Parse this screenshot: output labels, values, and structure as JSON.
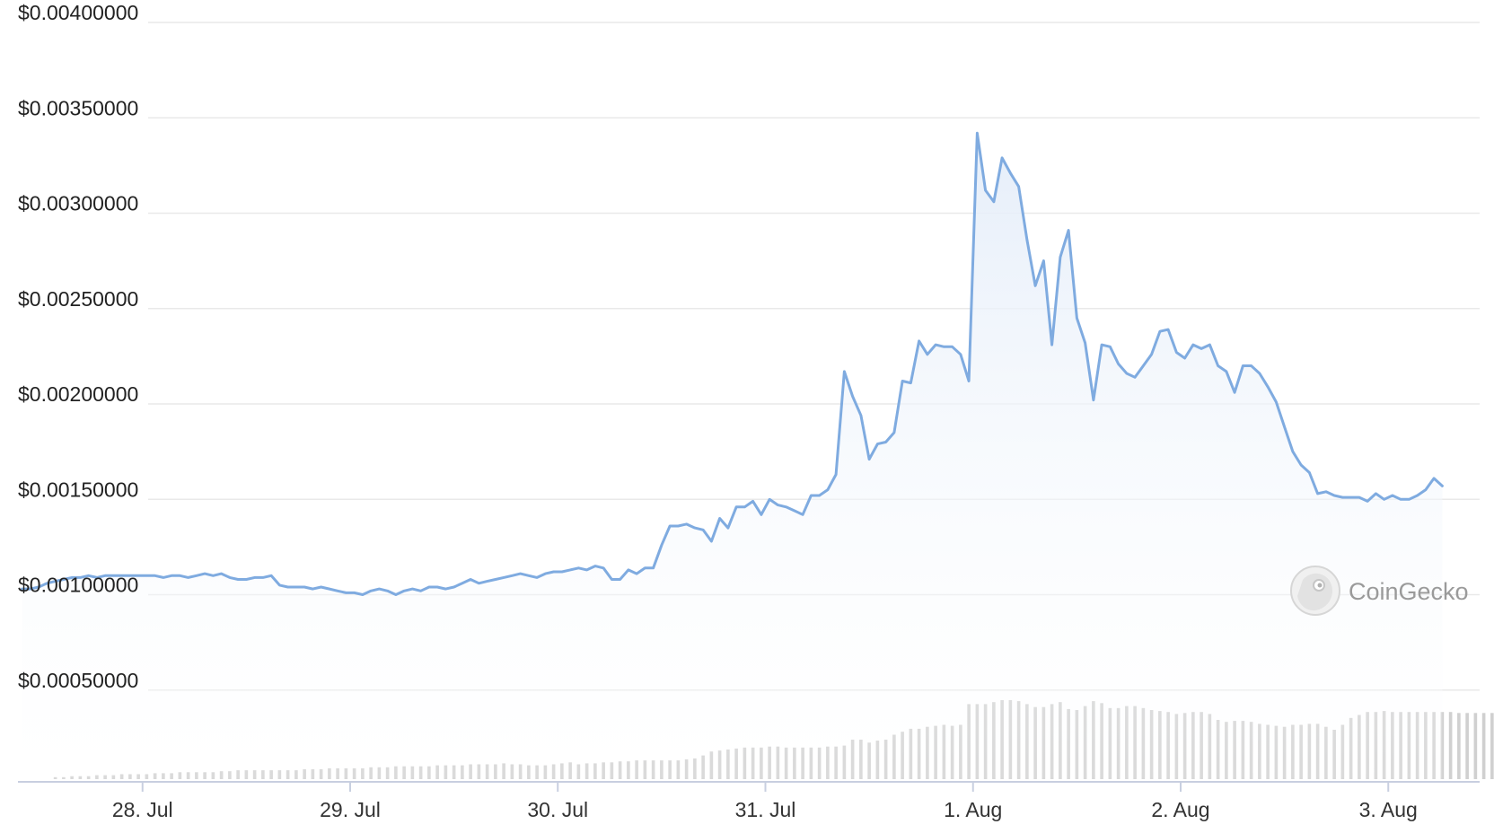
{
  "watermark": {
    "text": "CoinGecko",
    "icon": "coingecko-logo-icon"
  },
  "colors": {
    "line": "#7fabe0",
    "area_top": "#e4edf9",
    "volume": "#d0d0d0",
    "grid": "#e9e9e9",
    "axis": "#c8cfe0"
  },
  "chart_data": {
    "type": "line",
    "title": "",
    "xlabel": "",
    "ylabel": "",
    "ylim": [
      0.0004,
      0.004
    ],
    "grid": true,
    "ytick_values": [
      0.0005,
      0.001,
      0.0015,
      0.002,
      0.0025,
      0.003,
      0.0035,
      0.004
    ],
    "ytick_labels": [
      "$0.00050000",
      "$0.00100000",
      "$0.00150000",
      "$0.00200000",
      "$0.00250000",
      "$0.00300000",
      "$0.00350000",
      "$0.00400000"
    ],
    "xtick_values": [
      1,
      2,
      3,
      4,
      5,
      6,
      7
    ],
    "xtick_labels": [
      "28. Jul",
      "29. Jul",
      "30. Jul",
      "31. Jul",
      "1. Aug",
      "2. Aug",
      "3. Aug"
    ],
    "xlim": [
      0.4,
      7.44
    ],
    "x_unit": "days from 27. Jul",
    "series": [
      {
        "kind": "price",
        "points": [
          [
            0.42,
            0.00103
          ],
          [
            0.46,
            0.00103
          ],
          [
            0.5,
            0.00104
          ],
          [
            0.54,
            0.00106
          ],
          [
            0.58,
            0.00107
          ],
          [
            0.62,
            0.00108
          ],
          [
            0.66,
            0.00109
          ],
          [
            0.7,
            0.00109
          ],
          [
            0.74,
            0.0011
          ],
          [
            0.78,
            0.00109
          ],
          [
            0.82,
            0.0011
          ],
          [
            0.86,
            0.0011
          ],
          [
            0.9,
            0.0011
          ],
          [
            0.94,
            0.0011
          ],
          [
            0.98,
            0.0011
          ],
          [
            1.02,
            0.0011
          ],
          [
            1.06,
            0.0011
          ],
          [
            1.1,
            0.00109
          ],
          [
            1.14,
            0.0011
          ],
          [
            1.18,
            0.0011
          ],
          [
            1.22,
            0.00109
          ],
          [
            1.26,
            0.0011
          ],
          [
            1.3,
            0.00111
          ],
          [
            1.34,
            0.0011
          ],
          [
            1.38,
            0.00111
          ],
          [
            1.42,
            0.00109
          ],
          [
            1.46,
            0.00108
          ],
          [
            1.5,
            0.00108
          ],
          [
            1.54,
            0.00109
          ],
          [
            1.58,
            0.00109
          ],
          [
            1.62,
            0.0011
          ],
          [
            1.66,
            0.00105
          ],
          [
            1.7,
            0.00104
          ],
          [
            1.74,
            0.00104
          ],
          [
            1.78,
            0.00104
          ],
          [
            1.82,
            0.00103
          ],
          [
            1.86,
            0.00104
          ],
          [
            1.9,
            0.00103
          ],
          [
            1.94,
            0.00102
          ],
          [
            1.98,
            0.00101
          ],
          [
            2.02,
            0.00101
          ],
          [
            2.06,
            0.001
          ],
          [
            2.1,
            0.00102
          ],
          [
            2.14,
            0.00103
          ],
          [
            2.18,
            0.00102
          ],
          [
            2.22,
            0.001
          ],
          [
            2.26,
            0.00102
          ],
          [
            2.3,
            0.00103
          ],
          [
            2.34,
            0.00102
          ],
          [
            2.38,
            0.00104
          ],
          [
            2.42,
            0.00104
          ],
          [
            2.46,
            0.00103
          ],
          [
            2.5,
            0.00104
          ],
          [
            2.54,
            0.00106
          ],
          [
            2.58,
            0.00108
          ],
          [
            2.62,
            0.00106
          ],
          [
            2.66,
            0.00107
          ],
          [
            2.7,
            0.00108
          ],
          [
            2.74,
            0.00109
          ],
          [
            2.78,
            0.0011
          ],
          [
            2.82,
            0.00111
          ],
          [
            2.86,
            0.0011
          ],
          [
            2.9,
            0.00109
          ],
          [
            2.94,
            0.00111
          ],
          [
            2.98,
            0.00112
          ],
          [
            3.02,
            0.00112
          ],
          [
            3.06,
            0.00113
          ],
          [
            3.1,
            0.00114
          ],
          [
            3.14,
            0.00113
          ],
          [
            3.18,
            0.00115
          ],
          [
            3.22,
            0.00114
          ],
          [
            3.26,
            0.00108
          ],
          [
            3.3,
            0.00108
          ],
          [
            3.34,
            0.00113
          ],
          [
            3.38,
            0.00111
          ],
          [
            3.42,
            0.00114
          ],
          [
            3.46,
            0.00114
          ],
          [
            3.5,
            0.00126
          ],
          [
            3.54,
            0.00136
          ],
          [
            3.58,
            0.00136
          ],
          [
            3.62,
            0.00137
          ],
          [
            3.66,
            0.00135
          ],
          [
            3.7,
            0.00134
          ],
          [
            3.74,
            0.00128
          ],
          [
            3.78,
            0.0014
          ],
          [
            3.82,
            0.00135
          ],
          [
            3.86,
            0.00146
          ],
          [
            3.9,
            0.00146
          ],
          [
            3.94,
            0.00149
          ],
          [
            3.98,
            0.00142
          ],
          [
            4.02,
            0.0015
          ],
          [
            4.06,
            0.00147
          ],
          [
            4.1,
            0.00146
          ],
          [
            4.14,
            0.00144
          ],
          [
            4.18,
            0.00142
          ],
          [
            4.22,
            0.00152
          ],
          [
            4.26,
            0.00152
          ],
          [
            4.3,
            0.00155
          ],
          [
            4.34,
            0.00163
          ],
          [
            4.38,
            0.00217
          ],
          [
            4.42,
            0.00204
          ],
          [
            4.46,
            0.00194
          ],
          [
            4.5,
            0.00171
          ],
          [
            4.54,
            0.00179
          ],
          [
            4.58,
            0.0018
          ],
          [
            4.62,
            0.00185
          ],
          [
            4.66,
            0.00212
          ],
          [
            4.7,
            0.00211
          ],
          [
            4.74,
            0.00233
          ],
          [
            4.78,
            0.00226
          ],
          [
            4.82,
            0.00231
          ],
          [
            4.86,
            0.0023
          ],
          [
            4.9,
            0.0023
          ],
          [
            4.94,
            0.00226
          ],
          [
            4.98,
            0.00212
          ],
          [
            5.02,
            0.00342
          ],
          [
            5.06,
            0.00312
          ],
          [
            5.1,
            0.00306
          ],
          [
            5.14,
            0.00329
          ],
          [
            5.18,
            0.00321
          ],
          [
            5.22,
            0.00314
          ],
          [
            5.26,
            0.00286
          ],
          [
            5.3,
            0.00262
          ],
          [
            5.34,
            0.00275
          ],
          [
            5.38,
            0.00231
          ],
          [
            5.42,
            0.00277
          ],
          [
            5.46,
            0.00291
          ],
          [
            5.5,
            0.00245
          ],
          [
            5.54,
            0.00232
          ],
          [
            5.58,
            0.00202
          ],
          [
            5.62,
            0.00231
          ],
          [
            5.66,
            0.0023
          ],
          [
            5.7,
            0.00221
          ],
          [
            5.74,
            0.00216
          ],
          [
            5.78,
            0.00214
          ],
          [
            5.82,
            0.0022
          ],
          [
            5.86,
            0.00226
          ],
          [
            5.9,
            0.00238
          ],
          [
            5.94,
            0.00239
          ],
          [
            5.98,
            0.00227
          ],
          [
            6.02,
            0.00224
          ],
          [
            6.06,
            0.00231
          ],
          [
            6.1,
            0.00229
          ],
          [
            6.14,
            0.00231
          ],
          [
            6.18,
            0.0022
          ],
          [
            6.22,
            0.00217
          ],
          [
            6.26,
            0.00206
          ],
          [
            6.3,
            0.0022
          ],
          [
            6.34,
            0.0022
          ],
          [
            6.38,
            0.00216
          ],
          [
            6.42,
            0.00209
          ],
          [
            6.46,
            0.00201
          ],
          [
            6.5,
            0.00188
          ],
          [
            6.54,
            0.00175
          ],
          [
            6.58,
            0.00168
          ],
          [
            6.62,
            0.00164
          ],
          [
            6.66,
            0.00153
          ],
          [
            6.7,
            0.00154
          ],
          [
            6.74,
            0.00152
          ],
          [
            6.78,
            0.00151
          ],
          [
            6.82,
            0.00151
          ],
          [
            6.86,
            0.00151
          ],
          [
            6.9,
            0.00149
          ],
          [
            6.94,
            0.00153
          ],
          [
            6.98,
            0.0015
          ],
          [
            7.02,
            0.00152
          ],
          [
            7.06,
            0.0015
          ],
          [
            7.1,
            0.0015
          ],
          [
            7.14,
            0.00152
          ],
          [
            7.18,
            0.00155
          ],
          [
            7.22,
            0.00161
          ],
          [
            7.26,
            0.00157
          ]
        ]
      },
      {
        "kind": "volume",
        "scale_max": 1.0,
        "x_start": 0.58,
        "x_step": 0.04,
        "relative_values": [
          0.02,
          0.02,
          0.03,
          0.03,
          0.03,
          0.04,
          0.04,
          0.04,
          0.05,
          0.05,
          0.05,
          0.05,
          0.06,
          0.06,
          0.06,
          0.07,
          0.07,
          0.07,
          0.07,
          0.07,
          0.08,
          0.08,
          0.09,
          0.09,
          0.09,
          0.09,
          0.09,
          0.09,
          0.09,
          0.09,
          0.1,
          0.1,
          0.1,
          0.11,
          0.11,
          0.11,
          0.11,
          0.11,
          0.12,
          0.12,
          0.12,
          0.13,
          0.13,
          0.13,
          0.13,
          0.13,
          0.14,
          0.14,
          0.14,
          0.14,
          0.15,
          0.15,
          0.15,
          0.15,
          0.16,
          0.15,
          0.15,
          0.14,
          0.14,
          0.14,
          0.15,
          0.16,
          0.17,
          0.15,
          0.16,
          0.16,
          0.17,
          0.17,
          0.18,
          0.18,
          0.19,
          0.19,
          0.19,
          0.19,
          0.19,
          0.19,
          0.2,
          0.21,
          0.24,
          0.28,
          0.29,
          0.3,
          0.31,
          0.32,
          0.32,
          0.32,
          0.33,
          0.33,
          0.32,
          0.32,
          0.32,
          0.32,
          0.32,
          0.33,
          0.33,
          0.34,
          0.4,
          0.4,
          0.37,
          0.39,
          0.4,
          0.45,
          0.48,
          0.51,
          0.51,
          0.53,
          0.54,
          0.55,
          0.54,
          0.55,
          0.76,
          0.76,
          0.76,
          0.78,
          0.8,
          0.8,
          0.79,
          0.76,
          0.73,
          0.73,
          0.76,
          0.78,
          0.71,
          0.7,
          0.74,
          0.79,
          0.77,
          0.72,
          0.72,
          0.74,
          0.74,
          0.72,
          0.7,
          0.69,
          0.68,
          0.66,
          0.67,
          0.68,
          0.68,
          0.66,
          0.6,
          0.58,
          0.59,
          0.59,
          0.58,
          0.56,
          0.55,
          0.54,
          0.53,
          0.55,
          0.55,
          0.56,
          0.56,
          0.53,
          0.5,
          0.55,
          0.62,
          0.65,
          0.68,
          0.68,
          0.69,
          0.68,
          0.68,
          0.68,
          0.68,
          0.68,
          0.68,
          0.68,
          0.68,
          0.67,
          0.67,
          0.67,
          0.67,
          0.67,
          0.67,
          0.67,
          0.66,
          0.62
        ]
      }
    ]
  }
}
